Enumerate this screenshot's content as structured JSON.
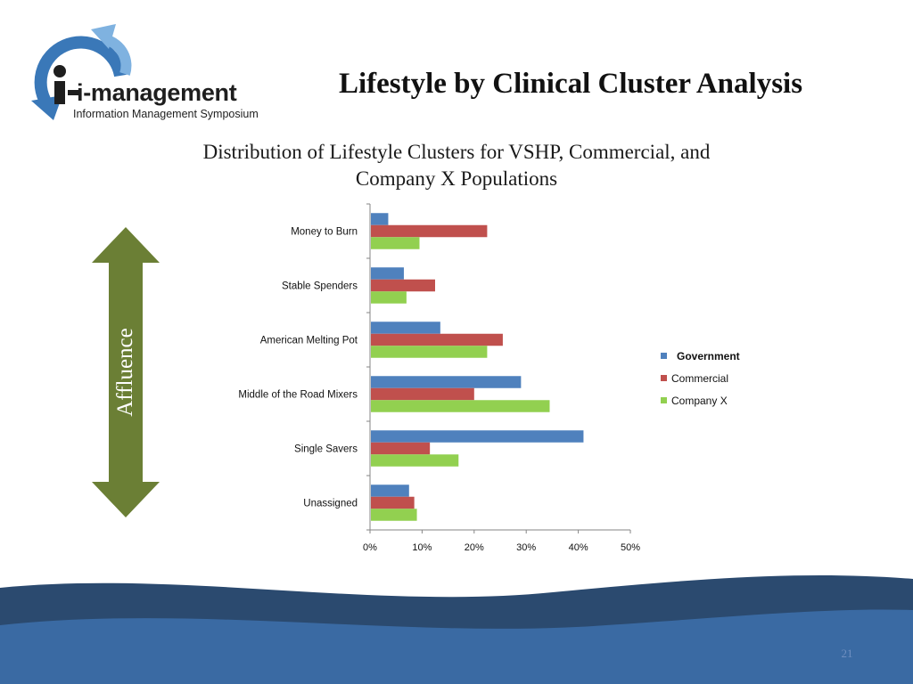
{
  "logo": {
    "name": "i-management",
    "tagline": "Information Management Symposium"
  },
  "slide": {
    "title": "Lifestyle by Clinical Cluster Analysis",
    "page_number": "21"
  },
  "arrow": {
    "label": "Affluence",
    "color": "#6b7f35"
  },
  "colors": {
    "government": "#4f81bd",
    "commercial": "#c0504d",
    "company_x": "#92d050",
    "footer_dark": "#2b4a6f",
    "footer_light": "#3a6aa3"
  },
  "chart_data": {
    "type": "bar",
    "orientation": "horizontal",
    "title_lines": [
      "Distribution of Lifestyle Clusters for VSHP, Commercial, and",
      "Company X Populations"
    ],
    "categories": [
      "Money to Burn",
      "Stable Spenders",
      "American Melting Pot",
      "Middle of the Road Mixers",
      "Single Savers",
      "Unassigned"
    ],
    "series": [
      {
        "name": "Government",
        "values": [
          3.5,
          6.5,
          13.5,
          29,
          41,
          7.5
        ]
      },
      {
        "name": "Commercial",
        "values": [
          22.5,
          12.5,
          25.5,
          20,
          11.5,
          8.5
        ]
      },
      {
        "name": "Company X",
        "values": [
          9.5,
          7,
          22.5,
          34.5,
          17,
          9
        ]
      }
    ],
    "xlim": [
      0,
      50
    ],
    "xticks": [
      "0%",
      "10%",
      "20%",
      "30%",
      "40%",
      "50%"
    ],
    "legend": "right",
    "grid": false
  }
}
